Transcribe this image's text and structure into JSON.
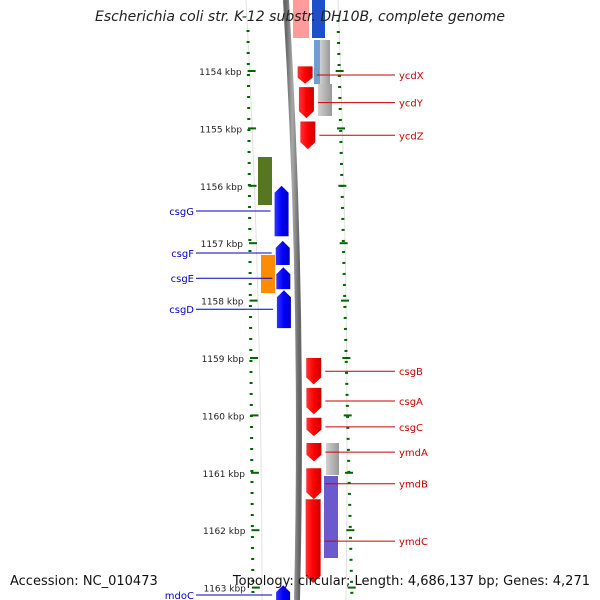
{
  "title": "Escherichia coli str. K-12 substr. DH10B, complete genome",
  "footer": {
    "accession": "Accession: NC_010473",
    "topology": "Topology: circular; Length: 4,686,137 bp; Genes: 4,271"
  },
  "ruler": {
    "unit": "kbp",
    "ticks": [
      {
        "kbp": 1154,
        "label": "1154 kbp"
      },
      {
        "kbp": 1155,
        "label": "1155 kbp"
      },
      {
        "kbp": 1156,
        "label": "1156 kbp"
      },
      {
        "kbp": 1157,
        "label": "1157 kbp"
      },
      {
        "kbp": 1158,
        "label": "1158 kbp"
      },
      {
        "kbp": 1159,
        "label": "1159 kbp"
      },
      {
        "kbp": 1160,
        "label": "1160 kbp"
      },
      {
        "kbp": 1161,
        "label": "1161 kbp"
      },
      {
        "kbp": 1162,
        "label": "1162 kbp"
      },
      {
        "kbp": 1163,
        "label": "1163 kbp"
      }
    ]
  },
  "colors": {
    "forward_gene": "#ff0000",
    "reverse_gene": "#0000ff",
    "label_forward": "#cc0000",
    "label_reverse": "#0000cc",
    "ruler": "#006600",
    "backbone": "#808080",
    "feature_green": "#557722",
    "feature_orange": "#ff8c00",
    "feature_grey": "#b4b4b4",
    "feature_lightblue": "#6f9fd0",
    "feature_purple": "#6a5acd"
  },
  "genes": {
    "forward": [
      {
        "name": "ycdX",
        "start_kbp": 1153.92,
        "end_kbp": 1154.22
      },
      {
        "name": "ycdY",
        "start_kbp": 1154.28,
        "end_kbp": 1154.82
      },
      {
        "name": "ycdZ",
        "start_kbp": 1154.88,
        "end_kbp": 1155.36
      },
      {
        "name": "csgB",
        "start_kbp": 1159.0,
        "end_kbp": 1159.46
      },
      {
        "name": "csgA",
        "start_kbp": 1159.52,
        "end_kbp": 1159.98
      },
      {
        "name": "csgC",
        "start_kbp": 1160.04,
        "end_kbp": 1160.36
      },
      {
        "name": "ymdA",
        "start_kbp": 1160.48,
        "end_kbp": 1160.8
      },
      {
        "name": "ymdB",
        "start_kbp": 1160.92,
        "end_kbp": 1161.46
      },
      {
        "name": "ymdC",
        "start_kbp": 1161.46,
        "end_kbp": 1162.92
      }
    ],
    "reverse": [
      {
        "name": "csgG",
        "start_kbp": 1156.0,
        "end_kbp": 1156.88
      },
      {
        "name": "csgF",
        "start_kbp": 1156.96,
        "end_kbp": 1157.38
      },
      {
        "name": "csgE",
        "start_kbp": 1157.42,
        "end_kbp": 1157.8
      },
      {
        "name": "csgD",
        "start_kbp": 1157.82,
        "end_kbp": 1158.48
      },
      {
        "name": "mdoC",
        "start_kbp": 1162.96,
        "end_kbp": 1163.3
      }
    ]
  }
}
